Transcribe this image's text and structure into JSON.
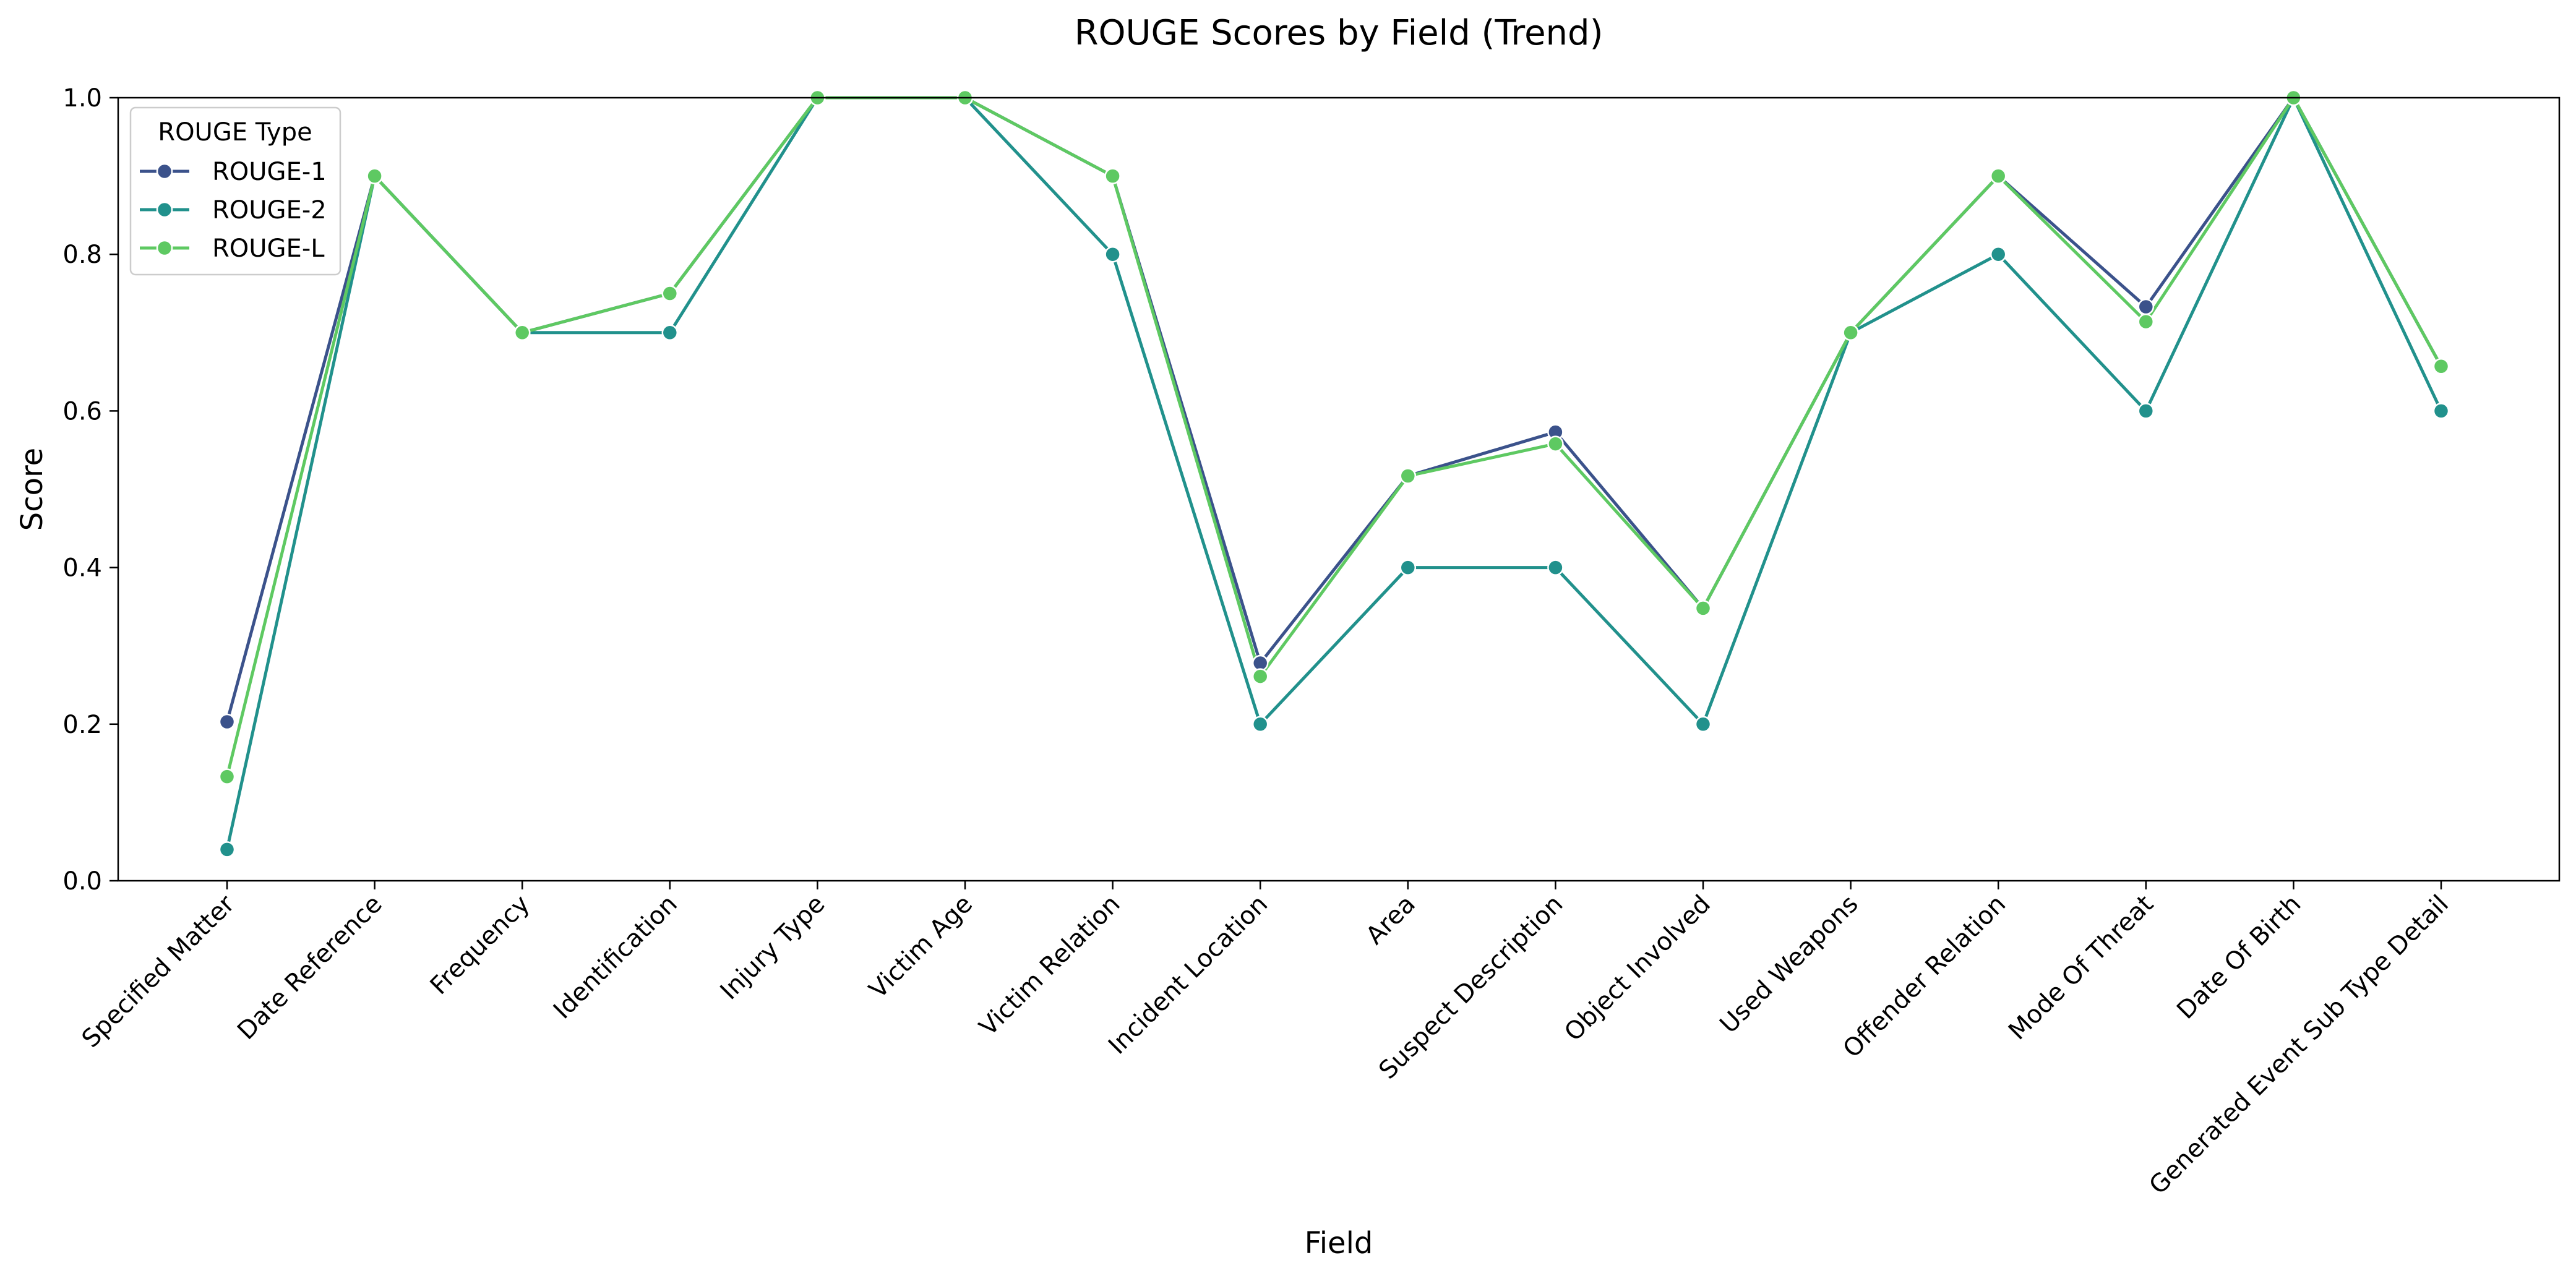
{
  "chart_data": {
    "type": "line",
    "title": "ROUGE Scores by Field (Trend)",
    "xlabel": "Field",
    "ylabel": "Score",
    "ylim": [
      0,
      1
    ],
    "yticks": [
      "0.0",
      "0.2",
      "0.4",
      "0.6",
      "0.8",
      "1.0"
    ],
    "grid": false,
    "legend": {
      "title": "ROUGE Type",
      "placement": "top-left"
    },
    "categories": [
      "Specified Matter",
      "Date Reference",
      "Frequency",
      "Identification",
      "Injury Type",
      "Victim Age",
      "Victim Relation",
      "Incident Location",
      "Area",
      "Suspect Description",
      "Object Involved",
      "Used Weapons",
      "Offender Relation",
      "Mode Of Threat",
      "Date Of Birth",
      "Generated Event Sub Type Detail"
    ],
    "series": [
      {
        "name": "ROUGE-1",
        "color": "#3b528b",
        "values": [
          0.203,
          0.9,
          0.7,
          0.75,
          1.0,
          1.0,
          0.9,
          0.278,
          0.517,
          0.573,
          0.348,
          0.7,
          0.9,
          0.733,
          1.0,
          0.657
        ]
      },
      {
        "name": "ROUGE-2",
        "color": "#21918c",
        "values": [
          0.04,
          0.9,
          0.7,
          0.7,
          1.0,
          1.0,
          0.8,
          0.2,
          0.4,
          0.4,
          0.2,
          0.7,
          0.8,
          0.6,
          1.0,
          0.6
        ]
      },
      {
        "name": "ROUGE-L",
        "color": "#5ec962",
        "values": [
          0.133,
          0.9,
          0.7,
          0.75,
          1.0,
          1.0,
          0.9,
          0.261,
          0.517,
          0.558,
          0.348,
          0.7,
          0.9,
          0.714,
          1.0,
          0.657
        ]
      }
    ]
  }
}
